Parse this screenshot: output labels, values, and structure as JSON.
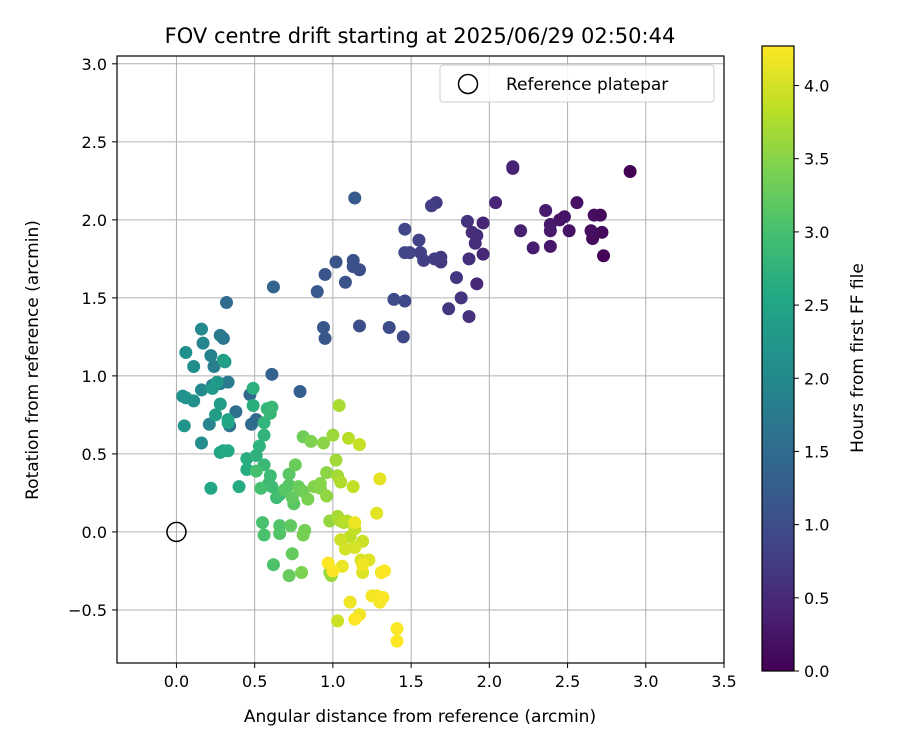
{
  "chart_data": {
    "type": "scatter",
    "title": "FOV centre drift starting at 2025/06/29 02:50:44",
    "xlabel": "Angular distance from reference (arcmin)",
    "ylabel": "Rotation from reference (arcmin)",
    "xlim": [
      -0.38,
      3.5
    ],
    "ylim": [
      -0.84,
      3.05
    ],
    "x_ticks": [
      "0.0",
      "0.5",
      "1.0",
      "1.5",
      "2.0",
      "2.5",
      "3.0",
      "3.5"
    ],
    "y_ticks": [
      "−0.5",
      "0.0",
      "0.5",
      "1.0",
      "1.5",
      "2.0",
      "2.5",
      "3.0"
    ],
    "grid": true,
    "legend": {
      "position": "top-right",
      "entries": [
        "Reference platepar"
      ]
    },
    "colorbar": {
      "label": "Hours from first FF file",
      "min": 0.0,
      "max": 4.27,
      "colormap": "viridis",
      "ticks": [
        "0.0",
        "0.5",
        "1.0",
        "1.5",
        "2.0",
        "2.5",
        "3.0",
        "3.5",
        "4.0"
      ]
    },
    "reference": {
      "x": 0.0,
      "y": 0.0,
      "label": "Reference platepar"
    },
    "series": [
      {
        "points": [
          [
            2.9,
            2.31,
            0.0
          ],
          [
            2.73,
            1.77,
            0.05
          ],
          [
            2.71,
            2.03,
            0.08
          ],
          [
            2.72,
            1.92,
            0.1
          ],
          [
            2.66,
            1.88,
            0.12
          ],
          [
            2.67,
            2.03,
            0.14
          ],
          [
            2.65,
            1.93,
            0.16
          ],
          [
            2.56,
            2.11,
            0.19
          ],
          [
            2.51,
            1.93,
            0.21
          ],
          [
            2.48,
            2.02,
            0.23
          ],
          [
            2.45,
            2.0,
            0.25
          ],
          [
            2.39,
            1.83,
            0.27
          ],
          [
            2.39,
            1.97,
            0.29
          ],
          [
            2.39,
            1.93,
            0.31
          ],
          [
            2.36,
            2.06,
            0.33
          ],
          [
            2.28,
            1.82,
            0.35
          ],
          [
            2.2,
            1.93,
            0.38
          ],
          [
            2.15,
            2.33,
            0.4
          ],
          [
            2.15,
            2.34,
            0.42
          ],
          [
            2.04,
            2.11,
            0.44
          ],
          [
            1.96,
            1.98,
            0.46
          ],
          [
            1.96,
            1.78,
            0.48
          ],
          [
            1.92,
            1.59,
            0.5
          ],
          [
            1.92,
            1.9,
            0.52
          ],
          [
            1.91,
            1.85,
            0.54
          ],
          [
            1.89,
            1.92,
            0.56
          ],
          [
            1.87,
            1.75,
            0.58
          ],
          [
            1.87,
            1.38,
            0.6
          ],
          [
            1.86,
            1.99,
            0.62
          ],
          [
            1.82,
            1.5,
            0.64
          ],
          [
            1.79,
            1.63,
            0.66
          ],
          [
            1.74,
            1.43,
            0.68
          ],
          [
            1.69,
            1.76,
            0.7
          ],
          [
            1.69,
            1.73,
            0.72
          ],
          [
            1.66,
            2.11,
            0.74
          ],
          [
            1.65,
            1.75,
            0.76
          ],
          [
            1.63,
            2.09,
            0.78
          ],
          [
            1.58,
            1.74,
            0.8
          ],
          [
            1.56,
            1.79,
            0.82
          ],
          [
            1.55,
            1.87,
            0.84
          ],
          [
            1.49,
            1.79,
            0.86
          ],
          [
            1.46,
            1.79,
            0.88
          ],
          [
            1.46,
            1.94,
            0.9
          ],
          [
            1.46,
            1.48,
            0.92
          ],
          [
            1.45,
            1.25,
            0.94
          ],
          [
            1.39,
            1.49,
            0.96
          ],
          [
            1.36,
            1.31,
            0.98
          ],
          [
            1.17,
            1.68,
            1.0
          ],
          [
            1.17,
            1.32,
            1.02
          ],
          [
            1.13,
            1.74,
            1.04
          ],
          [
            1.13,
            1.7,
            1.06
          ],
          [
            1.08,
            1.6,
            1.08
          ],
          [
            1.02,
            1.73,
            1.1
          ],
          [
            0.95,
            1.65,
            1.12
          ],
          [
            0.95,
            1.24,
            1.14
          ],
          [
            0.94,
            1.31,
            1.16
          ],
          [
            0.9,
            1.54,
            1.18
          ],
          [
            1.14,
            2.14,
            1.2
          ],
          [
            0.79,
            0.9,
            1.3
          ],
          [
            0.61,
            1.01,
            1.32
          ],
          [
            0.62,
            1.57,
            1.36
          ],
          [
            0.47,
            0.88,
            1.4
          ],
          [
            0.51,
            0.72,
            1.45
          ],
          [
            0.48,
            0.69,
            1.48
          ],
          [
            0.32,
            1.47,
            1.5
          ],
          [
            0.38,
            0.77,
            1.55
          ],
          [
            0.34,
            0.68,
            1.6
          ],
          [
            0.3,
            1.24,
            1.65
          ],
          [
            0.28,
            1.26,
            1.7
          ],
          [
            0.33,
            0.96,
            1.75
          ],
          [
            0.28,
            0.95,
            1.78
          ],
          [
            0.24,
            1.06,
            1.8
          ],
          [
            0.23,
            0.94,
            1.85
          ],
          [
            0.22,
            1.13,
            1.88
          ],
          [
            0.21,
            0.69,
            1.92
          ],
          [
            0.17,
            1.21,
            1.95
          ],
          [
            0.16,
            1.3,
            1.98
          ],
          [
            0.16,
            0.91,
            2.0
          ],
          [
            0.16,
            0.57,
            2.05
          ],
          [
            0.11,
            1.06,
            2.08
          ],
          [
            0.11,
            0.84,
            2.1
          ],
          [
            0.06,
            1.15,
            2.12
          ],
          [
            0.04,
            0.87,
            2.15
          ],
          [
            0.06,
            0.86,
            2.18
          ],
          [
            0.05,
            0.68,
            2.2
          ],
          [
            0.31,
            1.09,
            2.25
          ],
          [
            0.26,
            0.96,
            2.28
          ],
          [
            0.23,
            0.92,
            2.3
          ],
          [
            0.28,
            0.82,
            2.35
          ],
          [
            0.25,
            0.75,
            2.38
          ],
          [
            0.3,
            1.1,
            2.4
          ],
          [
            0.33,
            0.72,
            2.45
          ],
          [
            0.33,
            0.7,
            2.48
          ],
          [
            0.28,
            0.51,
            2.5
          ],
          [
            0.22,
            0.28,
            2.52
          ],
          [
            0.3,
            0.52,
            2.55
          ],
          [
            0.33,
            0.52,
            2.58
          ],
          [
            0.4,
            0.29,
            2.6
          ],
          [
            0.45,
            0.4,
            2.62
          ],
          [
            0.45,
            0.47,
            2.65
          ],
          [
            0.49,
            0.81,
            2.68
          ],
          [
            0.49,
            0.92,
            2.7
          ],
          [
            0.51,
            0.49,
            2.72
          ],
          [
            0.53,
            0.55,
            2.74
          ],
          [
            0.56,
            0.62,
            2.76
          ],
          [
            0.56,
            0.7,
            2.78
          ],
          [
            0.58,
            0.79,
            2.8
          ],
          [
            0.6,
            0.76,
            2.82
          ],
          [
            0.61,
            0.8,
            2.84
          ],
          [
            0.56,
            0.43,
            2.86
          ],
          [
            0.59,
            0.31,
            2.88
          ],
          [
            0.6,
            0.36,
            2.9
          ],
          [
            0.61,
            0.29,
            2.92
          ],
          [
            0.64,
            0.22,
            2.94
          ],
          [
            0.66,
            0.24,
            2.96
          ],
          [
            0.54,
            0.28,
            2.98
          ],
          [
            0.51,
            0.39,
            3.0
          ],
          [
            0.55,
            0.06,
            3.02
          ],
          [
            0.56,
            -0.02,
            3.04
          ],
          [
            0.62,
            -0.21,
            3.06
          ],
          [
            0.66,
            0.04,
            3.08
          ],
          [
            0.66,
            -0.01,
            3.1
          ],
          [
            0.69,
            0.27,
            3.12
          ],
          [
            0.72,
            0.3,
            3.14
          ],
          [
            0.72,
            0.37,
            3.16
          ],
          [
            0.75,
            0.18,
            3.18
          ],
          [
            0.73,
            0.04,
            3.2
          ],
          [
            0.74,
            0.22,
            3.22
          ],
          [
            0.74,
            -0.14,
            3.24
          ],
          [
            0.72,
            -0.28,
            3.26
          ],
          [
            0.78,
            0.29,
            3.28
          ],
          [
            0.76,
            0.43,
            3.3
          ],
          [
            0.81,
            0.61,
            3.32
          ],
          [
            0.81,
            0.26,
            3.34
          ],
          [
            0.82,
            0.01,
            3.36
          ],
          [
            0.81,
            -0.02,
            3.38
          ],
          [
            0.84,
            0.21,
            3.4
          ],
          [
            0.8,
            -0.26,
            3.42
          ],
          [
            0.86,
            0.58,
            3.44
          ],
          [
            0.88,
            0.29,
            3.46
          ],
          [
            0.92,
            0.28,
            3.48
          ],
          [
            0.92,
            0.31,
            3.5
          ],
          [
            0.94,
            0.57,
            3.52
          ],
          [
            0.96,
            0.38,
            3.54
          ],
          [
            0.96,
            0.23,
            3.56
          ],
          [
            0.98,
            0.07,
            3.58
          ],
          [
            0.98,
            -0.26,
            3.6
          ],
          [
            0.99,
            -0.28,
            3.62
          ],
          [
            1.0,
            0.62,
            3.64
          ],
          [
            1.02,
            0.46,
            3.66
          ],
          [
            1.03,
            0.36,
            3.68
          ],
          [
            1.03,
            0.1,
            3.7
          ],
          [
            1.04,
            0.81,
            3.72
          ],
          [
            1.05,
            0.07,
            3.74
          ],
          [
            1.05,
            0.32,
            3.76
          ],
          [
            1.07,
            0.06,
            3.78
          ],
          [
            1.09,
            0.07,
            3.8
          ],
          [
            1.1,
            0.6,
            3.82
          ],
          [
            1.11,
            -0.03,
            3.84
          ],
          [
            1.13,
            0.29,
            3.86
          ],
          [
            1.14,
            0.02,
            3.88
          ],
          [
            1.17,
            0.56,
            3.9
          ],
          [
            1.19,
            -0.06,
            3.92
          ],
          [
            1.03,
            -0.57,
            3.94
          ],
          [
            1.05,
            -0.05,
            3.96
          ],
          [
            1.08,
            -0.11,
            3.98
          ],
          [
            1.14,
            -0.1,
            4.0
          ],
          [
            1.18,
            -0.18,
            4.02
          ],
          [
            1.19,
            -0.26,
            4.04
          ],
          [
            1.23,
            -0.18,
            4.06
          ],
          [
            1.28,
            0.12,
            4.08
          ],
          [
            1.3,
            0.34,
            4.1
          ],
          [
            1.3,
            -0.43,
            4.12
          ],
          [
            1.31,
            -0.26,
            4.14
          ],
          [
            1.06,
            -0.22,
            4.15
          ],
          [
            1.11,
            -0.45,
            4.16
          ],
          [
            1.14,
            0.06,
            4.17
          ],
          [
            1.17,
            -0.53,
            4.18
          ],
          [
            1.19,
            -0.21,
            4.19
          ],
          [
            1.25,
            -0.41,
            4.2
          ],
          [
            1.28,
            -0.41,
            4.21
          ],
          [
            1.3,
            -0.45,
            4.22
          ],
          [
            1.31,
            -0.26,
            4.23
          ],
          [
            1.32,
            -0.42,
            4.24
          ],
          [
            1.41,
            -0.62,
            4.25
          ],
          [
            1.41,
            -0.7,
            4.26
          ],
          [
            1.14,
            -0.56,
            4.27
          ],
          [
            0.97,
            -0.2,
            4.27
          ],
          [
            1.0,
            -0.25,
            4.27
          ],
          [
            1.33,
            -0.25,
            4.27
          ]
        ]
      }
    ]
  }
}
